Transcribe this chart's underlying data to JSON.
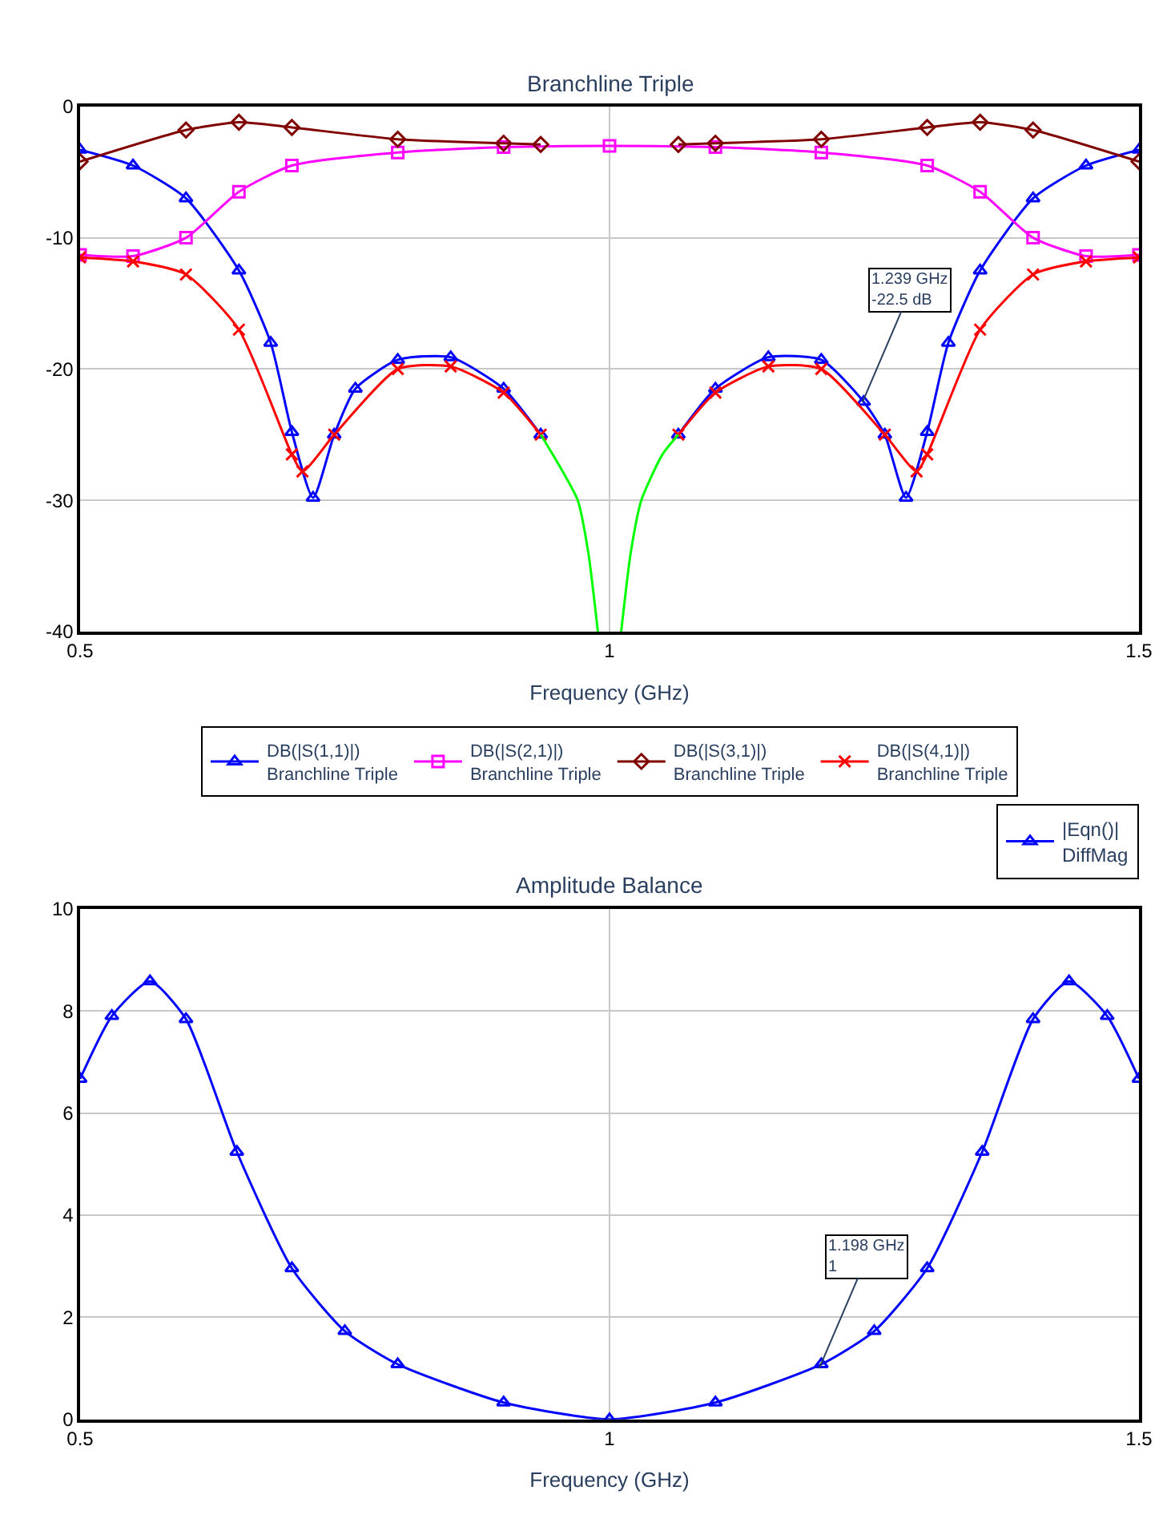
{
  "chart_data": [
    {
      "type": "line",
      "title": "Branchline Triple",
      "xlabel": "Frequency (GHz)",
      "xlim": [
        0.5,
        1.5
      ],
      "xticks": [
        0.5,
        1,
        1.5
      ],
      "ylim": [
        -40,
        0
      ],
      "yticks": [
        -40,
        -30,
        -20,
        -10,
        0
      ],
      "grid": true,
      "legend": "bottom",
      "series": [
        {
          "name": "DB(|S(1,1)|)\nBranchline Triple",
          "color": "#0000ff",
          "marker": "triangle",
          "x": [
            0.5,
            0.55,
            0.6,
            0.65,
            0.68,
            0.7,
            0.72,
            0.74,
            0.76,
            0.8,
            0.85,
            0.9,
            0.935,
            1.0,
            1.065,
            1.1,
            1.15,
            1.2,
            1.24,
            1.26,
            1.28,
            1.3,
            1.32,
            1.35,
            1.4,
            1.45,
            1.5
          ],
          "values": [
            -3.3,
            -4.5,
            -7,
            -12.5,
            -18,
            -24.8,
            -29.8,
            -25,
            -21.5,
            -19.3,
            -19.1,
            -21.5,
            -25,
            null,
            -25,
            -21.5,
            -19.1,
            -19.3,
            -22.5,
            -25,
            -29.8,
            -24.8,
            -18,
            -12.5,
            -7,
            -4.5,
            -3.3
          ]
        },
        {
          "name": "DB(|S(2,1)|)\nBranchline Triple",
          "color": "#ff00ff",
          "marker": "square",
          "x": [
            0.5,
            0.55,
            0.6,
            0.65,
            0.7,
            0.8,
            0.9,
            1.0,
            1.1,
            1.2,
            1.3,
            1.35,
            1.4,
            1.45,
            1.5
          ],
          "values": [
            -11.3,
            -11.4,
            -10,
            -6.5,
            -4.5,
            -3.5,
            -3.1,
            -3.0,
            -3.1,
            -3.5,
            -4.5,
            -6.5,
            -10,
            -11.4,
            -11.3
          ]
        },
        {
          "name": "DB(|S(3,1)|)\nBranchline Triple",
          "color": "#800000",
          "marker": "diamond",
          "x": [
            0.5,
            0.6,
            0.65,
            0.7,
            0.8,
            0.9,
            0.935,
            1.0,
            1.065,
            1.1,
            1.2,
            1.3,
            1.35,
            1.4,
            1.5
          ],
          "values": [
            -4.2,
            -1.8,
            -1.2,
            -1.6,
            -2.5,
            -2.8,
            -2.9,
            null,
            -2.9,
            -2.8,
            -2.5,
            -1.6,
            -1.2,
            -1.8,
            -4.2
          ]
        },
        {
          "name": "DB(|S(4,1)|)\nBranchline Triple",
          "color": "#ff0000",
          "marker": "cross",
          "x": [
            0.5,
            0.55,
            0.6,
            0.65,
            0.7,
            0.71,
            0.74,
            0.8,
            0.85,
            0.9,
            0.935,
            1.0,
            1.065,
            1.1,
            1.15,
            1.2,
            1.26,
            1.29,
            1.3,
            1.35,
            1.4,
            1.45,
            1.5
          ],
          "values": [
            -11.5,
            -11.8,
            -12.8,
            -17,
            -26.5,
            -27.8,
            -25,
            -20,
            -19.8,
            -21.8,
            -25,
            null,
            -25,
            -21.8,
            -19.8,
            -20,
            -25,
            -27.8,
            -26.5,
            -17,
            -12.8,
            -11.8,
            -11.5
          ]
        },
        {
          "color": "#00ff00",
          "marker": "none",
          "x": [
            0.935,
            0.95,
            0.97,
            0.98,
            0.989,
            1.0,
            1.011,
            1.02,
            1.03,
            1.05,
            1.065
          ],
          "values": [
            -25,
            -27,
            -30,
            -34,
            -40,
            null,
            -40,
            -34,
            -30,
            -26.5,
            -25
          ]
        }
      ],
      "annotations": [
        {
          "text": "1.239 GHz\n-22.5 dB",
          "x": 1.239,
          "y": -22.5
        }
      ]
    },
    {
      "type": "line",
      "title": "Amplitude Balance",
      "xlabel": "Frequency (GHz)",
      "xlim": [
        0.5,
        1.5
      ],
      "xticks": [
        0.5,
        1,
        1.5
      ],
      "ylim": [
        0,
        10
      ],
      "yticks": [
        0,
        2,
        4,
        6,
        8,
        10
      ],
      "grid": true,
      "legend": "top right",
      "series": [
        {
          "name": "|Eqn()|\nDiffMag",
          "color": "#0000ff",
          "marker": "triangle",
          "x": [
            0.5,
            0.53,
            0.566,
            0.6,
            0.648,
            0.7,
            0.75,
            0.8,
            0.9,
            1.0,
            1.1,
            1.2,
            1.25,
            1.3,
            1.352,
            1.4,
            1.434,
            1.47,
            1.5
          ],
          "values": [
            6.67,
            7.9,
            8.58,
            7.84,
            5.24,
            2.96,
            1.73,
            1.08,
            0.33,
            0,
            0.33,
            1.08,
            1.73,
            2.96,
            5.24,
            7.84,
            8.58,
            7.9,
            6.67
          ]
        }
      ],
      "annotations": [
        {
          "text": "1.198 GHz\n1",
          "x": 1.198,
          "y": 1
        }
      ]
    }
  ]
}
